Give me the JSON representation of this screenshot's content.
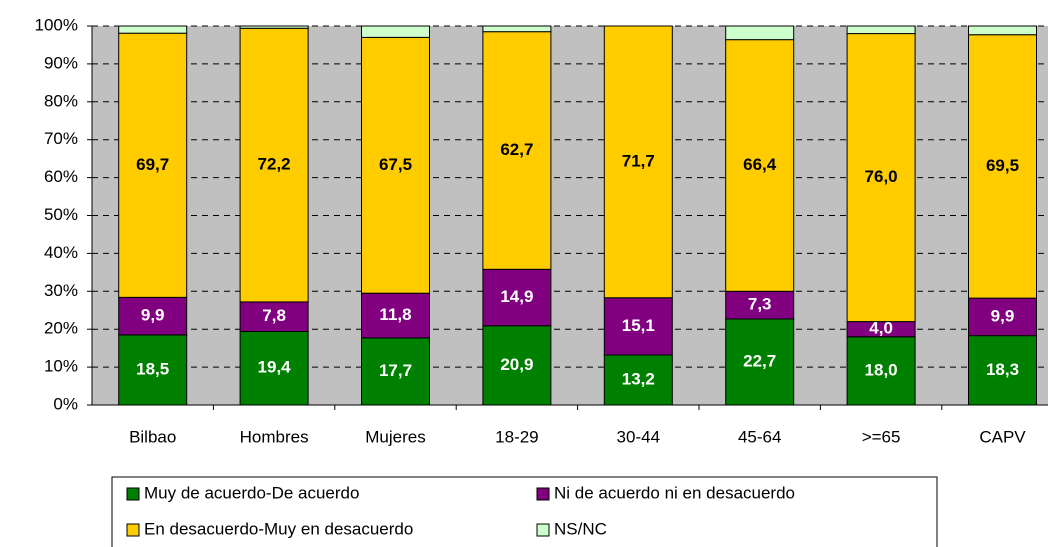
{
  "chart_data": {
    "type": "stacked_bar",
    "categories": [
      "Bilbao",
      "Hombres",
      "Mujeres",
      "18-29",
      "30-44",
      "45-64",
      ">=65",
      "CAPV"
    ],
    "series": [
      {
        "name": "Muy de acuerdo-De acuerdo",
        "color": "#008000",
        "values": [
          18.5,
          19.4,
          17.7,
          20.9,
          13.2,
          22.7,
          18.0,
          18.3
        ],
        "value_labels": [
          "18,5",
          "19,4",
          "17,7",
          "20,9",
          "13,2",
          "22,7",
          "18,0",
          "18,3"
        ]
      },
      {
        "name": "Ni de acuerdo ni en desacuerdo",
        "color": "#800080",
        "values": [
          9.9,
          7.8,
          11.8,
          14.9,
          15.1,
          7.3,
          4.0,
          9.9
        ],
        "value_labels": [
          "9,9",
          "7,8",
          "11,8",
          "14,9",
          "15,1",
          "7,3",
          "4,0",
          "9,9"
        ]
      },
      {
        "name": "En desacuerdo-Muy en desacuerdo",
        "color": "#ffcc00",
        "values": [
          69.7,
          72.2,
          67.5,
          62.7,
          71.7,
          66.4,
          76.0,
          69.5
        ],
        "value_labels": [
          "69,7",
          "72,2",
          "67,5",
          "62,7",
          "71,7",
          "66,4",
          "76,0",
          "69,5"
        ]
      },
      {
        "name": "NS/NC",
        "color": "#ccffcc",
        "values": [
          1.9,
          0.6,
          3.0,
          1.5,
          0.0,
          3.6,
          2.0,
          2.3
        ]
      }
    ],
    "ylim": [
      0,
      100
    ],
    "yticks": [
      {
        "value": 0,
        "label": "0%"
      },
      {
        "value": 10,
        "label": "10%"
      },
      {
        "value": 20,
        "label": "20%"
      },
      {
        "value": 30,
        "label": "30%"
      },
      {
        "value": 40,
        "label": "40%"
      },
      {
        "value": 50,
        "label": "50%"
      },
      {
        "value": 60,
        "label": "60%"
      },
      {
        "value": 70,
        "label": "70%"
      },
      {
        "value": 80,
        "label": "80%"
      },
      {
        "value": 90,
        "label": "90%"
      },
      {
        "value": 100,
        "label": "100%"
      }
    ],
    "grid": true,
    "legend": "bottom"
  }
}
